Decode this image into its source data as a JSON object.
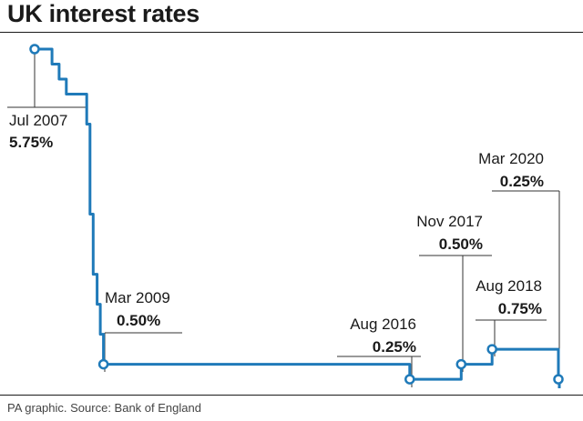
{
  "title": "UK interest rates",
  "source": "PA graphic. Source: Bank of England",
  "colors": {
    "line": "#1f7ab9",
    "text": "#1a1a1a",
    "leader": "#333333"
  },
  "chart_data": {
    "type": "line",
    "title": "UK interest rates",
    "xlabel": "",
    "ylabel": "",
    "grid": false,
    "series": [
      {
        "x": [
          "2007-07-05",
          "2007-12-06",
          "2008-02-07",
          "2008-04-10",
          "2008-10-08",
          "2008-11-06",
          "2008-12-04",
          "2009-01-08",
          "2009-02-05",
          "2009-03-05",
          "2016-08-04",
          "2017-11-02",
          "2018-08-02",
          "2020-03-11",
          "2020-03-19"
        ],
        "y": [
          5.75,
          5.5,
          5.25,
          5.0,
          4.5,
          3.0,
          2.0,
          1.5,
          1.0,
          0.5,
          0.25,
          0.5,
          0.75,
          0.25,
          0.1
        ]
      }
    ],
    "annotations": [
      {
        "date": "Jul 2007",
        "value": "5.75%"
      },
      {
        "date": "Mar 2009",
        "value": "0.50%"
      },
      {
        "date": "Aug 2016",
        "value": "0.25%"
      },
      {
        "date": "Nov 2017",
        "value": "0.50%"
      },
      {
        "date": "Aug 2018",
        "value": "0.75%"
      },
      {
        "date": "Mar 2020",
        "value": "0.25%"
      }
    ]
  }
}
